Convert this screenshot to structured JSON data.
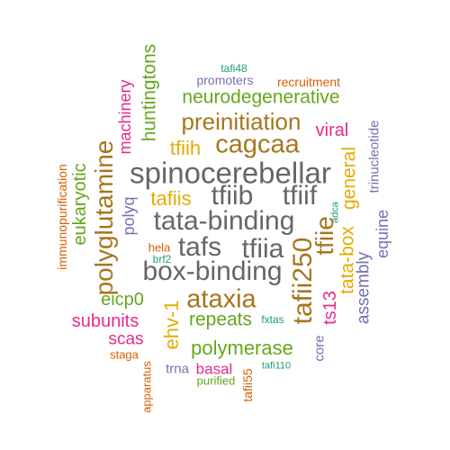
{
  "colors": {
    "teal": "#1b9e77",
    "orange": "#d95f02",
    "purple": "#7570b3",
    "magenta": "#e7298a",
    "green": "#66a61e",
    "gold": "#e6ab02",
    "brown": "#a6761d",
    "gray": "#666666"
  },
  "words": [
    {
      "text": "tafi48",
      "color": "teal"
    },
    {
      "text": "promoters",
      "color": "purple"
    },
    {
      "text": "recruitment",
      "color": "orange"
    },
    {
      "text": "huntingtons",
      "color": "green"
    },
    {
      "text": "machinery",
      "color": "magenta"
    },
    {
      "text": "neurodegenerative",
      "color": "green"
    },
    {
      "text": "preinitiation",
      "color": "brown"
    },
    {
      "text": "viral",
      "color": "magenta"
    },
    {
      "text": "trinucleotide",
      "color": "purple"
    },
    {
      "text": "tfiih",
      "color": "gold"
    },
    {
      "text": "cagcaa",
      "color": "brown"
    },
    {
      "text": "eukaryotic",
      "color": "green"
    },
    {
      "text": "spinocerebellar",
      "color": "gray"
    },
    {
      "text": "general",
      "color": "gold"
    },
    {
      "text": "polyglutamine",
      "color": "brown"
    },
    {
      "text": "tafiis",
      "color": "gold"
    },
    {
      "text": "tfiib",
      "color": "gray"
    },
    {
      "text": "tfiif",
      "color": "gray"
    },
    {
      "text": "immunopurification",
      "color": "orange"
    },
    {
      "text": "polyq",
      "color": "purple"
    },
    {
      "text": "tata-binding",
      "color": "gray"
    },
    {
      "text": "adca",
      "color": "teal"
    },
    {
      "text": "equine",
      "color": "purple"
    },
    {
      "text": "tfiie",
      "color": "brown"
    },
    {
      "text": "tata-box",
      "color": "gold"
    },
    {
      "text": "hela",
      "color": "orange"
    },
    {
      "text": "tafs",
      "color": "gray"
    },
    {
      "text": "tfiia",
      "color": "gray"
    },
    {
      "text": "brf2",
      "color": "teal"
    },
    {
      "text": "tafii250",
      "color": "brown"
    },
    {
      "text": "assembly",
      "color": "purple"
    },
    {
      "text": "box-binding",
      "color": "gray"
    },
    {
      "text": "eicp0",
      "color": "green"
    },
    {
      "text": "ataxia",
      "color": "brown"
    },
    {
      "text": "ts13",
      "color": "magenta"
    },
    {
      "text": "subunits",
      "color": "magenta"
    },
    {
      "text": "ehv-1",
      "color": "gold"
    },
    {
      "text": "repeats",
      "color": "green"
    },
    {
      "text": "fxtas",
      "color": "teal"
    },
    {
      "text": "scas",
      "color": "magenta"
    },
    {
      "text": "core",
      "color": "purple"
    },
    {
      "text": "staga",
      "color": "orange"
    },
    {
      "text": "polymerase",
      "color": "green"
    },
    {
      "text": "apparatus",
      "color": "orange"
    },
    {
      "text": "trna",
      "color": "purple"
    },
    {
      "text": "basal",
      "color": "magenta"
    },
    {
      "text": "tafii55",
      "color": "orange"
    },
    {
      "text": "tafi110",
      "color": "teal"
    },
    {
      "text": "purified",
      "color": "green"
    }
  ]
}
